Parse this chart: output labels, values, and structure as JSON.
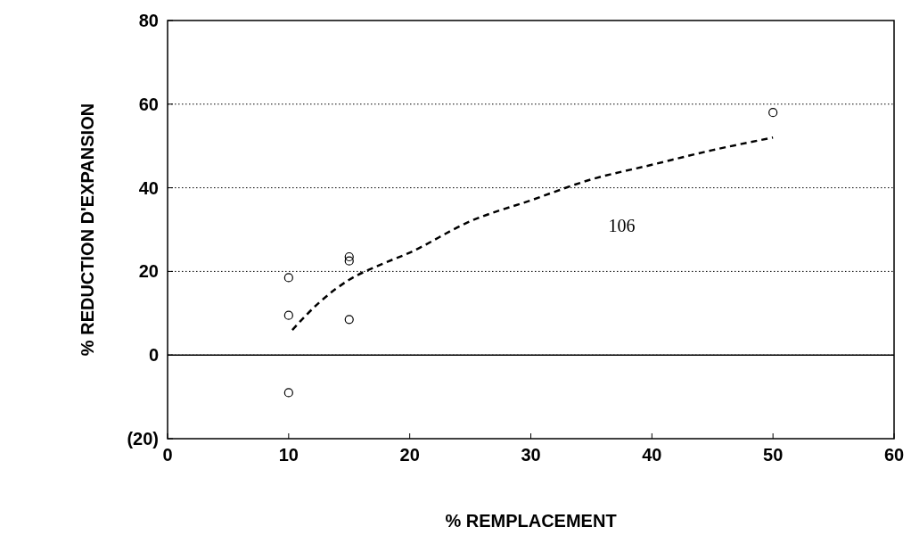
{
  "chart_data": {
    "type": "scatter",
    "xlabel": "% REMPLACEMENT",
    "ylabel": "% REDUCTION D'EXPANSION",
    "xlim": [
      0,
      60
    ],
    "xticks": [
      0,
      10,
      20,
      30,
      40,
      50,
      60
    ],
    "ylim": [
      -20,
      80
    ],
    "yticks": [
      {
        "value": -20,
        "label": "(20)"
      },
      0,
      20,
      40,
      60,
      80
    ],
    "grid": "y",
    "ref_lines": [
      {
        "axis": "y",
        "value": 0,
        "color": "#000000",
        "line_style": "solid"
      }
    ],
    "annotations": [
      "106"
    ],
    "series": [
      {
        "color": "#000000",
        "marker": "circle",
        "x": [
          10,
          10,
          10,
          15,
          15,
          15,
          50
        ],
        "values": [
          18.5,
          9.5,
          -9,
          23.5,
          22.5,
          8.5,
          58
        ]
      },
      {
        "type": "line",
        "color": "#000000",
        "marker": "none",
        "line_style": "dashed",
        "x": [
          10.3,
          12.5,
          15,
          17.5,
          20,
          25,
          30,
          35,
          40,
          45,
          50
        ],
        "values": [
          6,
          12.5,
          18,
          21.5,
          24.5,
          32,
          37,
          42,
          45.5,
          49,
          52
        ]
      }
    ]
  }
}
